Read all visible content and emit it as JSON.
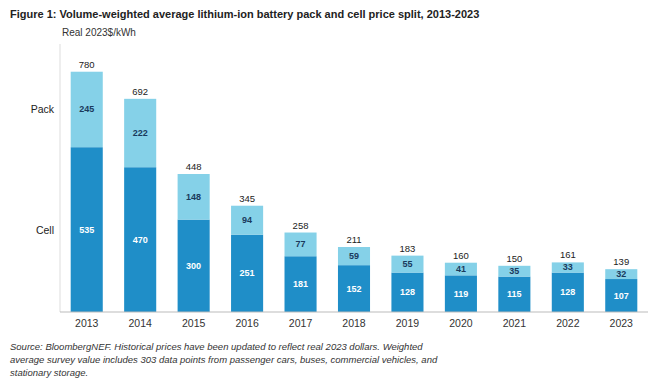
{
  "chart_data": {
    "type": "bar",
    "title": "Figure 1: Volume-weighted average lithium-ion battery pack and cell price split, 2013-2023",
    "ylabel": "Real 2023$/kWh",
    "annotations": [
      "Source: BloombergNEF. Historical prices have been updated to reflect real 2023 dollars. Weighted\naverage survey value includes 303 data points from passenger cars, buses, commercial vehicles, and\nstationary storage."
    ],
    "categories": [
      "2013",
      "2014",
      "2015",
      "2016",
      "2017",
      "2018",
      "2019",
      "2020",
      "2021",
      "2022",
      "2023"
    ],
    "series": [
      {
        "name": "Cell",
        "color": "#1F8EC8",
        "values": [
          535,
          470,
          300,
          251,
          181,
          152,
          128,
          119,
          115,
          128,
          107
        ]
      },
      {
        "name": "Pack",
        "color": "#85D1E8",
        "values": [
          245,
          222,
          148,
          94,
          77,
          59,
          55,
          41,
          35,
          33,
          32
        ]
      }
    ],
    "totals": [
      780,
      692,
      448,
      345,
      258,
      211,
      183,
      160,
      150,
      161,
      139
    ],
    "stacked": true,
    "data_labels": true,
    "ylim": [
      0,
      870
    ],
    "grid": false,
    "tick_labels": "x"
  }
}
